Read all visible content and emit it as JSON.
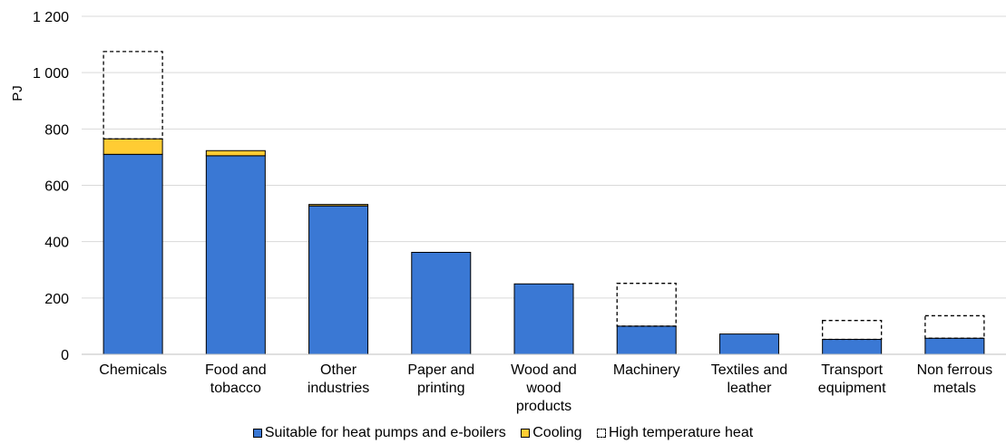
{
  "chart_data": {
    "type": "bar",
    "stacked": true,
    "ylabel": "PJ",
    "xlabel": "",
    "ylim": [
      0,
      1200
    ],
    "yticks": [
      "0",
      "200",
      "400",
      "600",
      "800",
      "1 000",
      "1 200"
    ],
    "ytick_values": [
      0,
      200,
      400,
      600,
      800,
      1000,
      1200
    ],
    "grid": true,
    "legend_position": "bottom",
    "categories": [
      [
        "Chemicals"
      ],
      [
        "Food and",
        "tobacco"
      ],
      [
        "Other",
        "industries"
      ],
      [
        "Paper and",
        "printing"
      ],
      [
        "Wood and",
        "wood",
        "products"
      ],
      [
        "Machinery"
      ],
      [
        "Textiles and",
        "leather"
      ],
      [
        "Transport",
        "equipment"
      ],
      [
        "Non ferrous",
        "metals"
      ]
    ],
    "series": [
      {
        "name": "Suitable for heat pumps and e-boilers",
        "color": "#3A78D4",
        "style": "solid",
        "values": [
          710,
          705,
          527,
          362,
          250,
          100,
          72,
          53,
          57
        ]
      },
      {
        "name": "Cooling",
        "color": "#FFCC33",
        "style": "solid",
        "values": [
          55,
          18,
          5,
          0,
          0,
          0,
          0,
          0,
          0
        ]
      },
      {
        "name": "High temperature heat",
        "color": "#000000",
        "style": "dashed",
        "values": [
          310,
          0,
          0,
          0,
          0,
          152,
          0,
          67,
          80
        ]
      }
    ]
  }
}
